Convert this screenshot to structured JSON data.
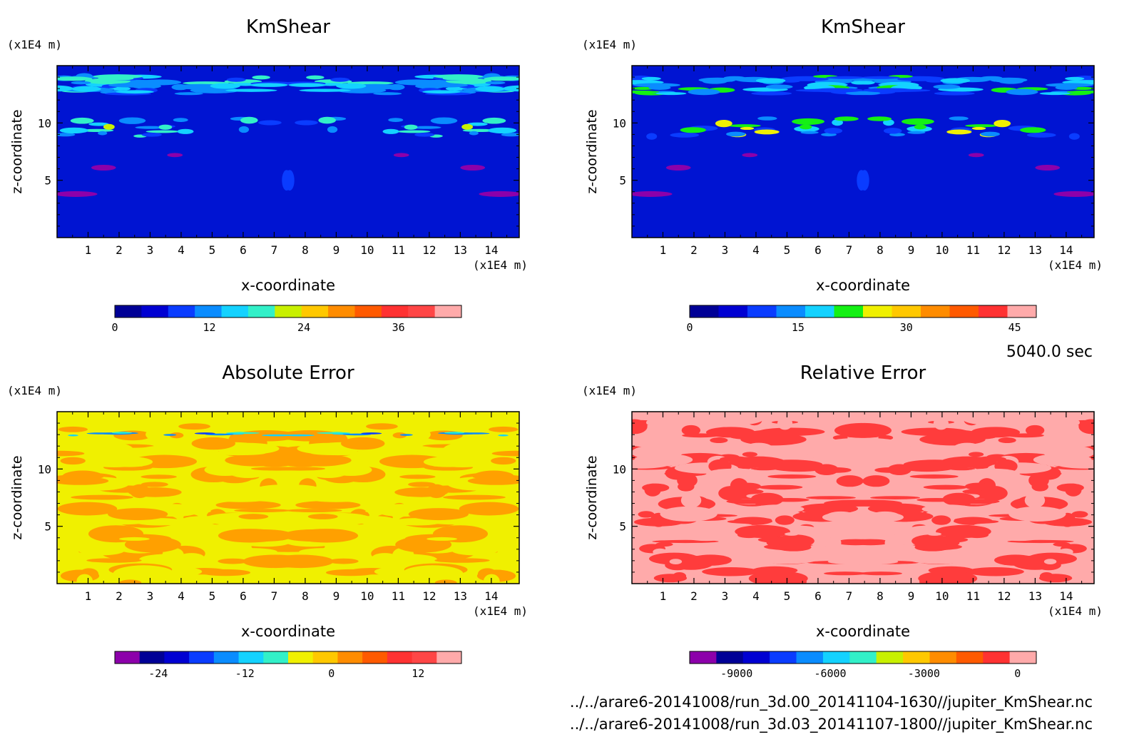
{
  "time_label": "5040.0 sec",
  "file_paths": [
    "../../arare6-20141008/run_3d.00_20141104-1630//jupiter_KmShear.nc",
    "../../arare6-20141008/run_3d.03_20141107-1800//jupiter_KmShear.nc"
  ],
  "chart_data": [
    {
      "type": "heatmap",
      "title": "KmShear",
      "xlabel": "x-coordinate",
      "ylabel": "z-coordinate",
      "x_unit": "(x1E4 m)",
      "y_unit": "(x1E4 m)",
      "xlim": [
        0,
        14.9
      ],
      "ylim": [
        0,
        15
      ],
      "x_ticks": [
        "1",
        "2",
        "3",
        "4",
        "5",
        "6",
        "7",
        "8",
        "9",
        "10",
        "11",
        "12",
        "13",
        "14"
      ],
      "y_ticks": [
        "5",
        "10"
      ],
      "colorbar": {
        "colors": [
          "#000096",
          "#0000d2",
          "#0a3cff",
          "#0a8cff",
          "#14d2ff",
          "#32f0c8",
          "#c8f000",
          "#ffc800",
          "#ff8c00",
          "#ff5a00",
          "#ff3232",
          "#ff4646",
          "#ffaaaa"
        ],
        "ticks": [
          "0",
          "12",
          "24",
          "36"
        ],
        "tick_values": [
          0,
          12,
          24,
          36
        ],
        "range": [
          0,
          44
        ]
      },
      "field": "KmShear",
      "background": "#0014d2",
      "features": "low background with higher values near the top boundary and near the side walls"
    },
    {
      "type": "heatmap",
      "title": "KmShear",
      "xlabel": "x-coordinate",
      "ylabel": "z-coordinate",
      "x_unit": "(x1E4 m)",
      "y_unit": "(x1E4 m)",
      "xlim": [
        0,
        14.9
      ],
      "ylim": [
        0,
        15
      ],
      "x_ticks": [
        "1",
        "2",
        "3",
        "4",
        "5",
        "6",
        "7",
        "8",
        "9",
        "10",
        "11",
        "12",
        "13",
        "14"
      ],
      "y_ticks": [
        "5",
        "10"
      ],
      "colorbar": {
        "colors": [
          "#000096",
          "#0000d2",
          "#0a3cff",
          "#0a8cff",
          "#14d2ff",
          "#14f014",
          "#f0f000",
          "#ffc800",
          "#ff8c00",
          "#ff5a00",
          "#ff3232",
          "#ffaaaa"
        ],
        "ticks": [
          "0",
          "15",
          "30",
          "45"
        ],
        "tick_values": [
          0,
          15,
          30,
          45
        ],
        "range": [
          0,
          48
        ]
      },
      "field": "KmShear",
      "background": "#0014d2",
      "features": "low background with higher values near the top boundary and near the side walls"
    },
    {
      "type": "heatmap",
      "title": "Absolute Error",
      "xlabel": "x-coordinate",
      "ylabel": "z-coordinate",
      "x_unit": "(x1E4 m)",
      "y_unit": "(x1E4 m)",
      "xlim": [
        0,
        14.9
      ],
      "ylim": [
        0,
        15
      ],
      "x_ticks": [
        "1",
        "2",
        "3",
        "4",
        "5",
        "6",
        "7",
        "8",
        "9",
        "10",
        "11",
        "12",
        "13",
        "14"
      ],
      "y_ticks": [
        "5",
        "10"
      ],
      "colorbar": {
        "colors": [
          "#8c00aa",
          "#000096",
          "#0000d2",
          "#0a3cff",
          "#0a8cff",
          "#14d2ff",
          "#32f0c8",
          "#f0f000",
          "#ffc800",
          "#ff8c00",
          "#ff5a00",
          "#ff3232",
          "#ff4646",
          "#ffaaaa"
        ],
        "ticks": [
          "-24",
          "-12",
          "0",
          "12"
        ],
        "tick_values": [
          -24,
          -12,
          0,
          12
        ],
        "range": [
          -30,
          18
        ]
      },
      "field": "Absolute Error",
      "background": "#f0f000",
      "features": "mixture of small positive and negative errors, larger errors near the top boundary"
    },
    {
      "type": "heatmap",
      "title": "Relative Error",
      "xlabel": "x-coordinate",
      "ylabel": "z-coordinate",
      "x_unit": "(x1E4 m)",
      "y_unit": "(x1E4 m)",
      "xlim": [
        0,
        14.9
      ],
      "ylim": [
        0,
        15
      ],
      "x_ticks": [
        "1",
        "2",
        "3",
        "4",
        "5",
        "6",
        "7",
        "8",
        "9",
        "10",
        "11",
        "12",
        "13",
        "14"
      ],
      "y_ticks": [
        "5",
        "10"
      ],
      "colorbar": {
        "colors": [
          "#8c00aa",
          "#000096",
          "#0000d2",
          "#0a3cff",
          "#0a8cff",
          "#14d2ff",
          "#32f0c8",
          "#c8f000",
          "#ffc800",
          "#ff8c00",
          "#ff5a00",
          "#ff3232",
          "#ffaaaa"
        ],
        "ticks": [
          "-9000",
          "-6000",
          "-3000",
          "0"
        ],
        "tick_values": [
          -9000,
          -6000,
          -3000,
          0
        ],
        "range": [
          -10500,
          600
        ]
      },
      "field": "Relative Error",
      "background": "#ffaaaa",
      "features": "mostly small relative errors with negative patches mirrored about the center"
    }
  ]
}
